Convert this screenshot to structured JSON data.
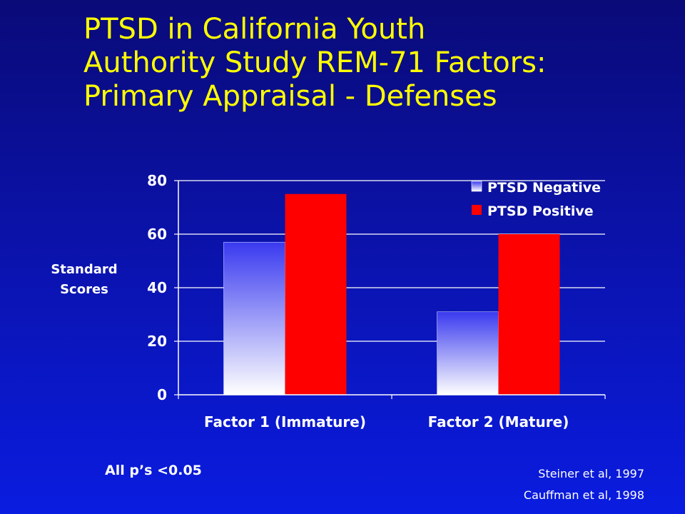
{
  "slide": {
    "title_lines": [
      "PTSD in California Youth",
      "Authority Study REM-71 Factors:",
      "Primary Appraisal - Defenses"
    ],
    "y_axis_label_lines": [
      "Standard",
      "Scores"
    ],
    "note": "All p’s <0.05",
    "citations": [
      "Steiner et al,  1997",
      "Cauffman et al,  1998"
    ]
  },
  "colors": {
    "background": "#0b12a8",
    "title": "#ffff00",
    "series_negative_top": "#3a3af0",
    "series_negative_bottom": "#ffffff",
    "series_positive": "#ff0000"
  },
  "chart_data": {
    "type": "bar",
    "categories": [
      "Factor 1 (Immature)",
      "Factor 2 (Mature)"
    ],
    "series": [
      {
        "name": "PTSD Negative",
        "values": [
          57,
          31
        ]
      },
      {
        "name": "PTSD Positive",
        "values": [
          75,
          60
        ]
      }
    ],
    "ylim": [
      0,
      80
    ],
    "yticks": [
      0,
      20,
      40,
      60,
      80
    ],
    "ylabel": "Standard Scores",
    "grid": true,
    "legend": "top-right"
  }
}
